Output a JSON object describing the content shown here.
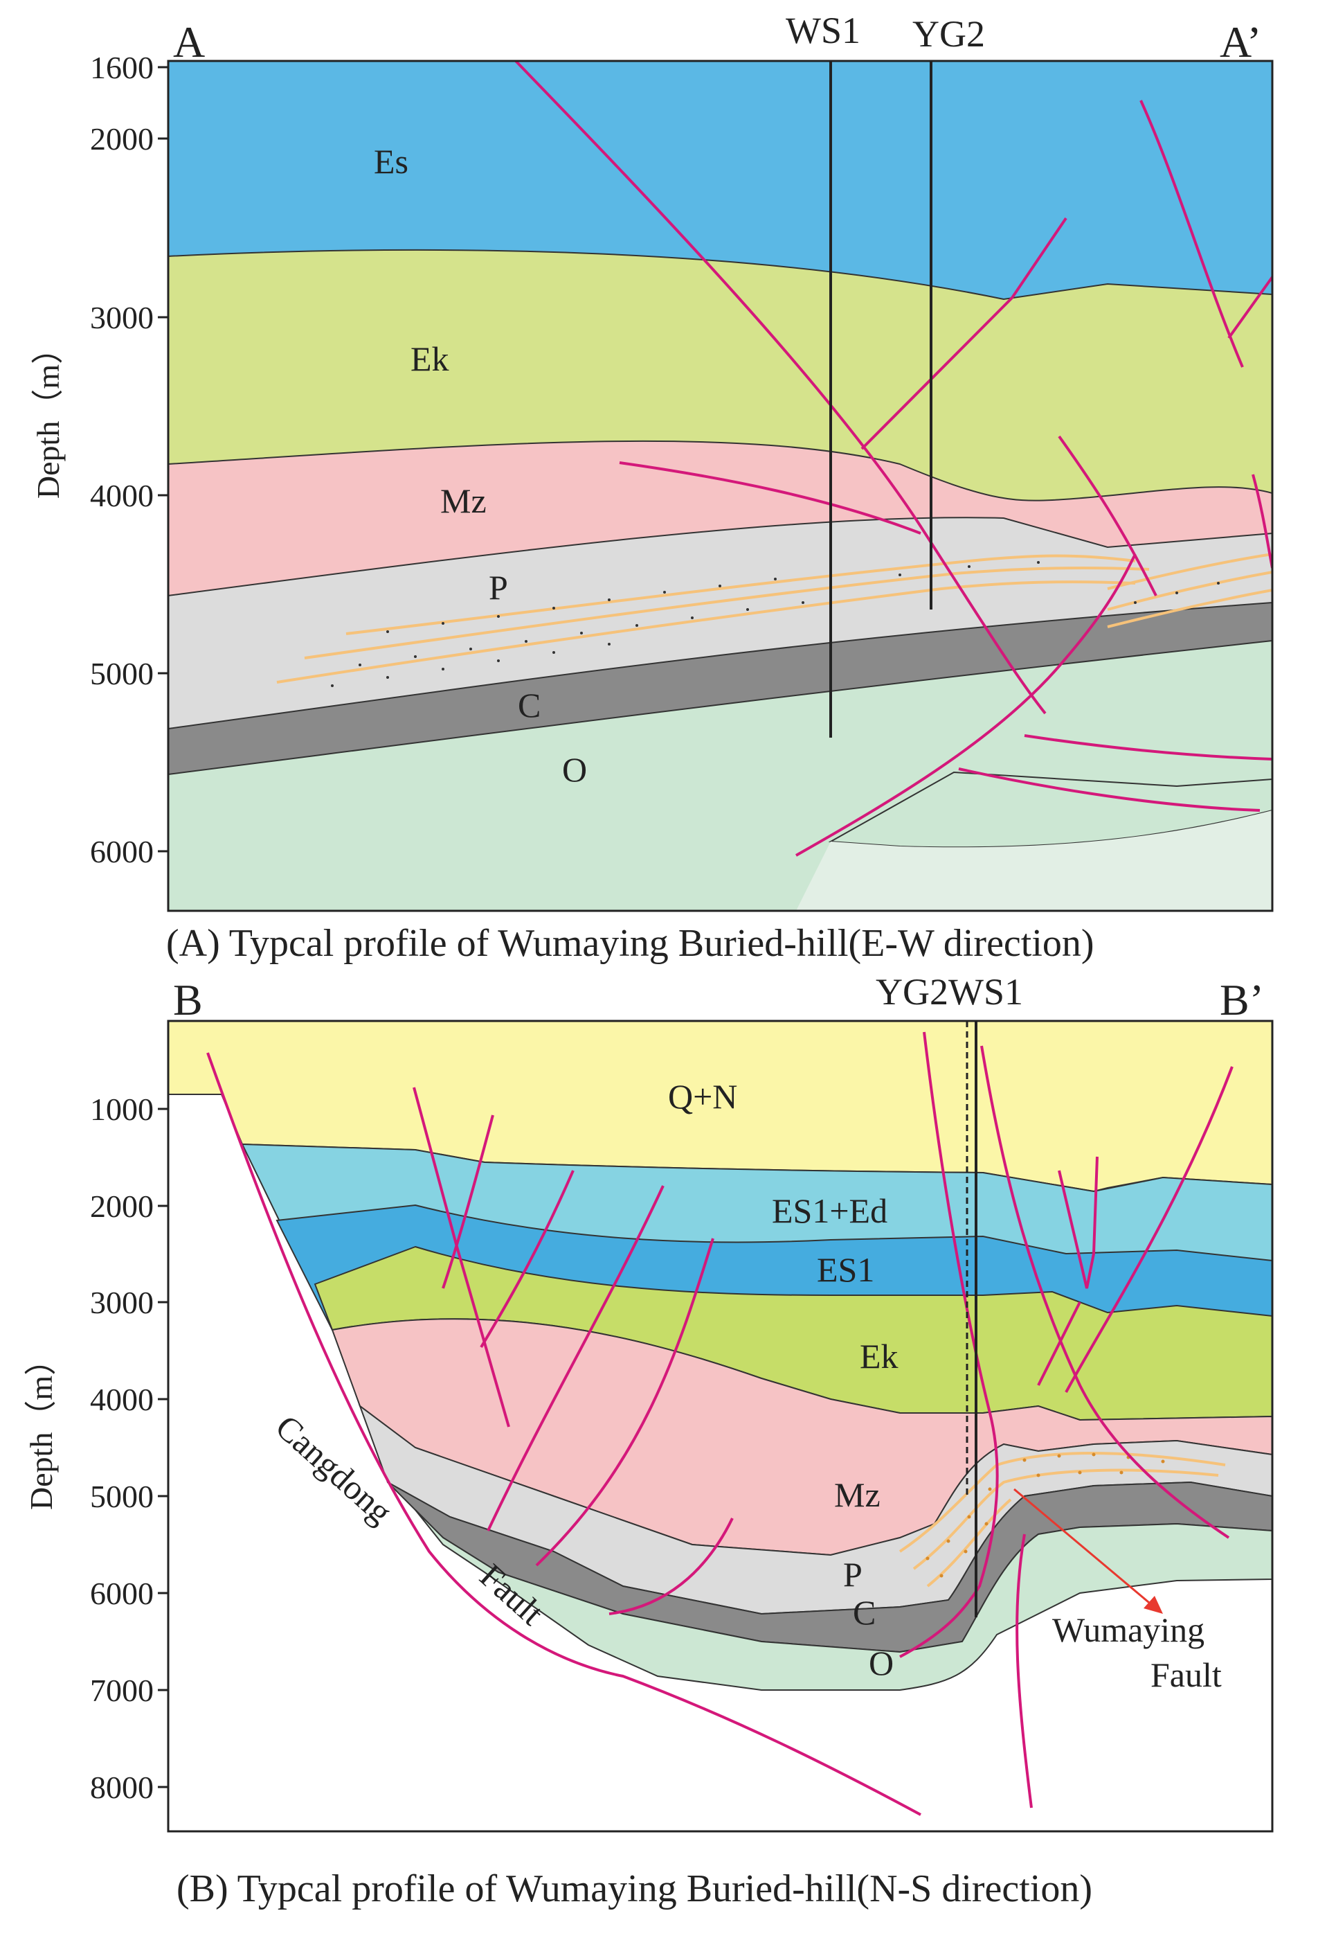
{
  "panel_a": {
    "caption": "(A) Typcal profile of Wumaying Buried-hill(E-W direction)",
    "corner_left": "A",
    "corner_right": "A’",
    "y_axis_label": "Depth（m）",
    "y_ticks": [
      "1600",
      "2000",
      "3000",
      "4000",
      "5000",
      "6000"
    ],
    "wells": [
      "WS1",
      "YG2"
    ],
    "formations": [
      "Es",
      "Ek",
      "Mz",
      "P",
      "C",
      "O"
    ]
  },
  "panel_b": {
    "caption": "(B) Typcal profile of Wumaying Buried-hill(N-S direction)",
    "corner_left": "B",
    "corner_right": "B’",
    "y_axis_label": "Depth（m）",
    "y_ticks": [
      "1000",
      "2000",
      "3000",
      "4000",
      "5000",
      "6000",
      "7000",
      "8000"
    ],
    "wells_label": "YG2WS1",
    "formations": [
      "Q+N",
      "ES1+Ed",
      "ES1",
      "Ek",
      "Mz",
      "P",
      "C",
      "O"
    ],
    "fault_labels": {
      "cangdong_1": "Cangdong",
      "cangdong_2": "Fault",
      "wumaying_1": "Wumaying",
      "wumaying_2": "Fault"
    }
  },
  "colors": {
    "es": "#5bb8e5",
    "ek": "#d5e38c",
    "mz": "#f6c3c5",
    "p": "#dcdcdc",
    "c": "#8a8a8a",
    "o": "#cce7d3",
    "qn": "#fbf6a8",
    "es1ed": "#86d3e2",
    "es1": "#45acdf",
    "ek_b": "#c6dd68",
    "fault": "#d4187a",
    "sand": "#f6c27a",
    "arrow": "#e8392f"
  }
}
